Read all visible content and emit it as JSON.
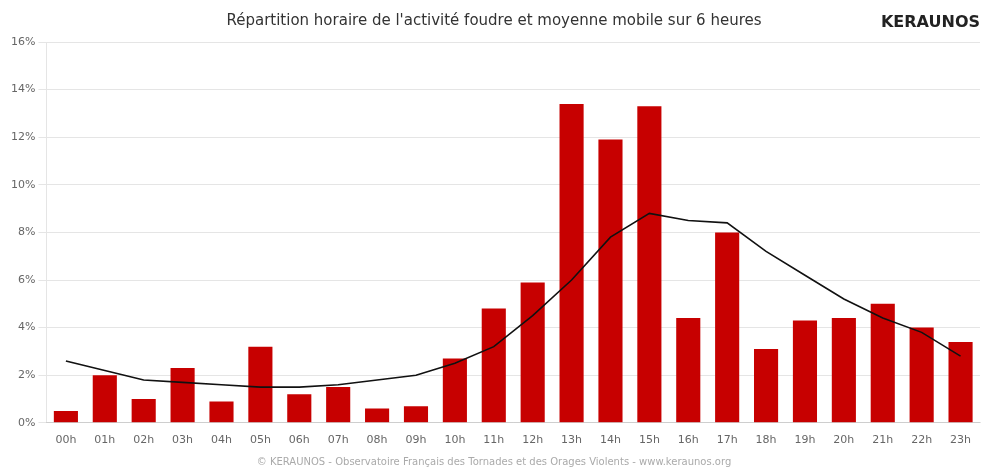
{
  "chart_data": {
    "type": "bar",
    "title": "Répartition horaire de l'activité foudre et moyenne mobile sur 6 heures",
    "annotations": [
      "© KERAUNOS - Observatoire Français des Tornades et des Orages Violents - www.keraunos.org",
      "KERAUNOS"
    ],
    "categories": [
      "00h",
      "01h",
      "02h",
      "03h",
      "04h",
      "05h",
      "06h",
      "07h",
      "08h",
      "09h",
      "10h",
      "11h",
      "12h",
      "13h",
      "14h",
      "15h",
      "16h",
      "17h",
      "18h",
      "19h",
      "20h",
      "21h",
      "22h",
      "23h"
    ],
    "series": [
      {
        "type": "bar",
        "color": "#c70000",
        "values": [
          0.005,
          0.02,
          0.01,
          0.023,
          0.009,
          0.032,
          0.012,
          0.015,
          0.006,
          0.007,
          0.027,
          0.048,
          0.059,
          0.134,
          0.119,
          0.133,
          0.044,
          0.08,
          0.031,
          0.043,
          0.044,
          0.05,
          0.04,
          0.034
        ]
      },
      {
        "type": "line",
        "color": "#111111",
        "marker": "none",
        "line_style": "solid",
        "values": [
          0.026,
          0.022,
          0.018,
          0.017,
          0.016,
          0.015,
          0.015,
          0.016,
          0.018,
          0.02,
          0.025,
          0.032,
          0.045,
          0.06,
          0.078,
          0.088,
          0.085,
          0.084,
          0.072,
          0.062,
          0.052,
          0.044,
          0.038,
          0.028
        ]
      }
    ],
    "ylim": [
      0,
      0.16
    ],
    "yticks": [
      {
        "value": 0.0,
        "label": "0%"
      },
      {
        "value": 0.02,
        "label": "2%"
      },
      {
        "value": 0.04,
        "label": "4%"
      },
      {
        "value": 0.06,
        "label": "6%"
      },
      {
        "value": 0.08,
        "label": "8%"
      },
      {
        "value": 0.1,
        "label": "10%"
      },
      {
        "value": 0.12,
        "label": "12%"
      },
      {
        "value": 0.14,
        "label": "14%"
      },
      {
        "value": 0.16,
        "label": "16%"
      }
    ],
    "grid": true
  }
}
